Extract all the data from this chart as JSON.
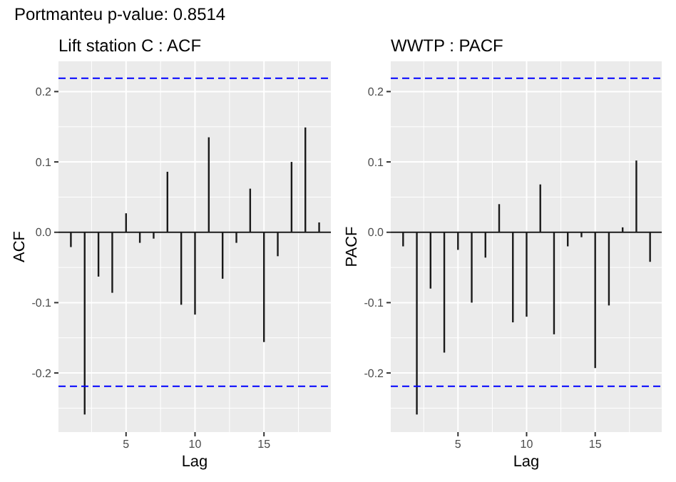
{
  "chart_data": [
    {
      "type": "bar",
      "title": "Lift station C : ACF",
      "annotations": [
        "Portmanteu p-value:  0.8514"
      ],
      "xlabel": "Lag",
      "ylabel": "ACF",
      "x": [
        1,
        2,
        3,
        4,
        5,
        6,
        7,
        8,
        9,
        10,
        11,
        12,
        13,
        14,
        15,
        16,
        17,
        18,
        19
      ],
      "values": [
        -0.021,
        -0.259,
        -0.063,
        -0.086,
        0.027,
        -0.015,
        -0.009,
        0.086,
        -0.103,
        -0.117,
        0.135,
        -0.066,
        -0.015,
        0.062,
        -0.156,
        -0.034,
        0.1,
        0.149,
        0.014
      ],
      "color": "#1a1a1a",
      "xlim": [
        0.1,
        19.85
      ],
      "xticks": [
        5,
        10,
        15
      ],
      "ylim": [
        -0.284,
        0.243
      ],
      "yticks": [
        -0.2,
        -0.1,
        {
          "value": 0,
          "label": "0.0"
        },
        0.1,
        0.2
      ],
      "grid": true,
      "ref_lines": [
        {
          "axis": "y",
          "value": 0.219,
          "color": "#0000ff",
          "line_style": "dashed"
        },
        {
          "axis": "y",
          "value": -0.219,
          "color": "#0000ff",
          "line_style": "dashed"
        }
      ]
    },
    {
      "type": "bar",
      "title": "WWTP : PACF",
      "xlabel": "Lag",
      "ylabel": "PACF",
      "x": [
        1,
        2,
        3,
        4,
        5,
        6,
        7,
        8,
        9,
        10,
        11,
        12,
        13,
        14,
        15,
        16,
        17,
        18,
        19
      ],
      "values": [
        -0.02,
        -0.259,
        -0.08,
        -0.171,
        -0.025,
        -0.1,
        -0.036,
        0.04,
        -0.128,
        -0.12,
        0.068,
        -0.145,
        -0.02,
        -0.007,
        -0.193,
        -0.104,
        0.007,
        0.102,
        -0.042
      ],
      "color": "#1a1a1a",
      "xlim": [
        0.1,
        19.85
      ],
      "xticks": [
        5,
        10,
        15
      ],
      "ylim": [
        -0.284,
        0.243
      ],
      "yticks": [
        -0.2,
        -0.1,
        {
          "value": 0,
          "label": "0.0"
        },
        0.1,
        0.2
      ],
      "grid": true,
      "ref_lines": [
        {
          "axis": "y",
          "value": 0.219,
          "color": "#0000ff",
          "line_style": "dashed"
        },
        {
          "axis": "y",
          "value": -0.219,
          "color": "#0000ff",
          "line_style": "dashed"
        }
      ]
    }
  ]
}
